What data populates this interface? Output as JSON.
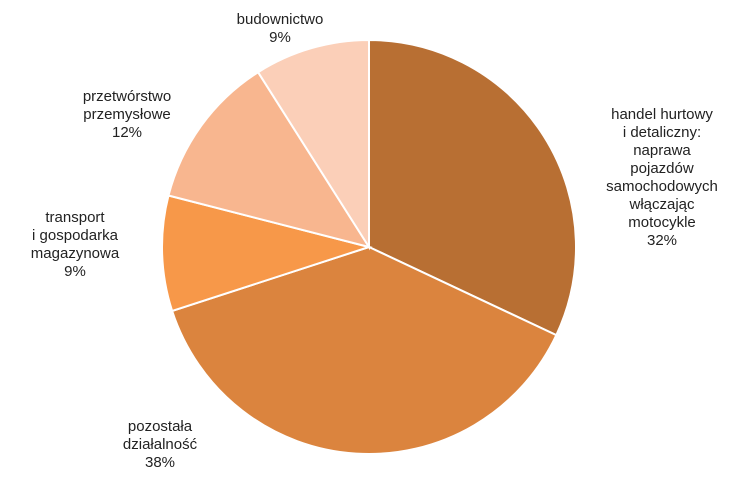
{
  "chart_data": {
    "type": "pie",
    "slices": [
      {
        "label_lines": [
          "handel hurtowy",
          "i detaliczny:",
          "naprawa",
          "pojazdów",
          "samochodowych",
          "włączając",
          "motocykle"
        ],
        "value": 32,
        "value_label": "32%",
        "color": "#b86f33"
      },
      {
        "label_lines": [
          "pozostała",
          "działalność"
        ],
        "value": 38,
        "value_label": "38%",
        "color": "#db843e"
      },
      {
        "label_lines": [
          "transport",
          "i gospodarka",
          "magazynowa"
        ],
        "value": 9,
        "value_label": "9%",
        "color": "#f79849"
      },
      {
        "label_lines": [
          "przetwórstwo",
          "przemysłowe"
        ],
        "value": 12,
        "value_label": "12%",
        "color": "#f8b68f"
      },
      {
        "label_lines": [
          "budownictwo"
        ],
        "value": 9,
        "value_label": "9%",
        "color": "#fbcfb8"
      }
    ]
  }
}
